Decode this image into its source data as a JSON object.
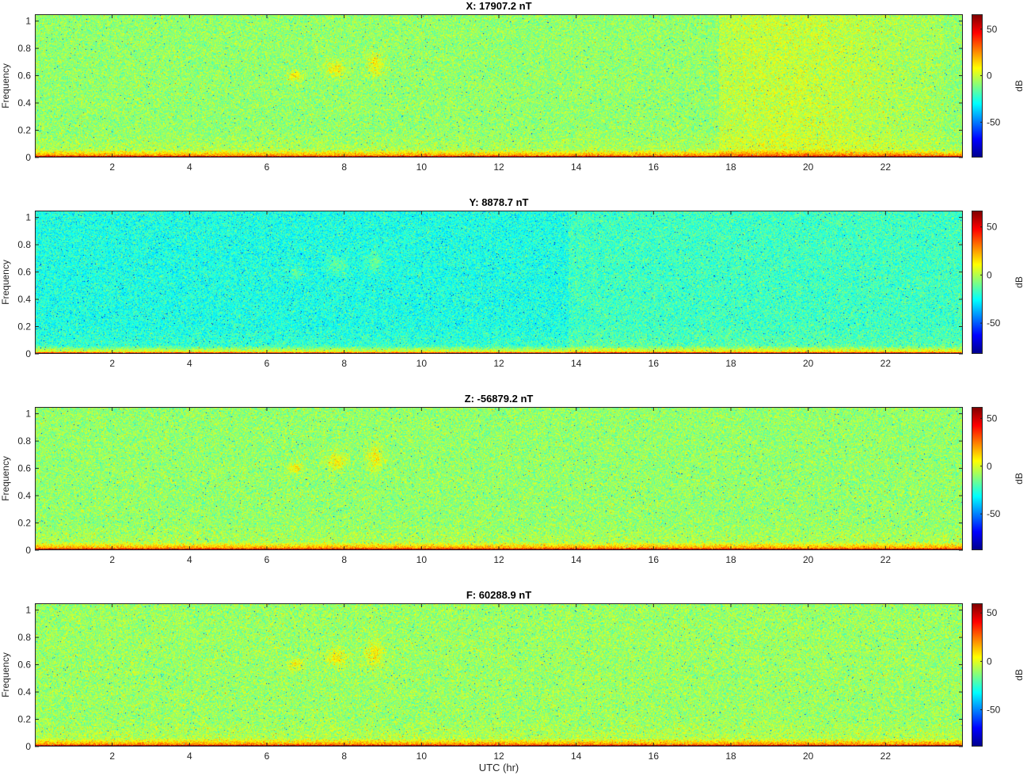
{
  "figure": {
    "xlabel": "UTC (hr)"
  },
  "chart_data": [
    {
      "type": "heatmap",
      "title": "X: 17907.2 nT",
      "ylabel": "Frequency",
      "xlabel": "",
      "xlim": [
        0,
        24
      ],
      "ylim": [
        0,
        1.05
      ],
      "xticks": [
        "2",
        "4",
        "6",
        "8",
        "10",
        "12",
        "14",
        "16",
        "18",
        "20",
        "22"
      ],
      "yticks": [
        "0",
        "0.2",
        "0.4",
        "0.6",
        "0.8",
        "1"
      ],
      "colorbar": {
        "label": "dB",
        "ticks": [
          "50",
          "0",
          "-50"
        ],
        "range": [
          -88,
          66
        ]
      },
      "colormap": "jet",
      "noise_level_db": -8,
      "features": "strong power below 0.03 Hz; bursts near 0.6-0.75 at 6.7, 7.8, 8.8 hr; elevated power 17.7-23 hr"
    },
    {
      "type": "heatmap",
      "title": "Y: 8878.7 nT",
      "ylabel": "Frequency",
      "xlabel": "",
      "xlim": [
        0,
        24
      ],
      "ylim": [
        0,
        1.05
      ],
      "xticks": [
        "2",
        "4",
        "6",
        "8",
        "10",
        "12",
        "14",
        "16",
        "18",
        "20",
        "22"
      ],
      "yticks": [
        "0",
        "0.2",
        "0.4",
        "0.6",
        "0.8",
        "1"
      ],
      "colorbar": {
        "label": "dB",
        "ticks": [
          "50",
          "0",
          "-50"
        ],
        "range": [
          -82,
          67
        ]
      },
      "colormap": "jet",
      "noise_level_db": -22,
      "features": "strong power below 0.03 Hz; faint bursts near 0.6-0.75 at 6.7, 7.8, 8.8 hr"
    },
    {
      "type": "heatmap",
      "title": "Z: -56879.2 nT",
      "ylabel": "Frequency",
      "xlabel": "",
      "xlim": [
        0,
        24
      ],
      "ylim": [
        0,
        1.05
      ],
      "xticks": [
        "2",
        "4",
        "6",
        "8",
        "10",
        "12",
        "14",
        "16",
        "18",
        "20",
        "22"
      ],
      "yticks": [
        "0",
        "0.2",
        "0.4",
        "0.6",
        "0.8",
        "1"
      ],
      "colorbar": {
        "label": "dB",
        "ticks": [
          "50",
          "0",
          "-50"
        ],
        "range": [
          -88,
          62
        ]
      },
      "colormap": "jet",
      "noise_level_db": -10,
      "features": "strong power below 0.05 Hz; bursts near 0.6-0.75 at 6.7, 7.8, 8.8 hr"
    },
    {
      "type": "heatmap",
      "title": "F: 60288.9 nT",
      "ylabel": "Frequency",
      "xlabel": "",
      "xlim": [
        0,
        24
      ],
      "ylim": [
        0,
        1.05
      ],
      "xticks": [
        "2",
        "4",
        "6",
        "8",
        "10",
        "12",
        "14",
        "16",
        "18",
        "20",
        "22"
      ],
      "yticks": [
        "0",
        "0.2",
        "0.4",
        "0.6",
        "0.8",
        "1"
      ],
      "colorbar": {
        "label": "dB",
        "ticks": [
          "50",
          "0",
          "-50"
        ],
        "range": [
          -88,
          60
        ]
      },
      "colormap": "jet",
      "noise_level_db": -10,
      "features": "strong power below 0.04 Hz; bursts near 0.6-0.75 at 6.7, 7.8, 8.8 hr"
    }
  ]
}
